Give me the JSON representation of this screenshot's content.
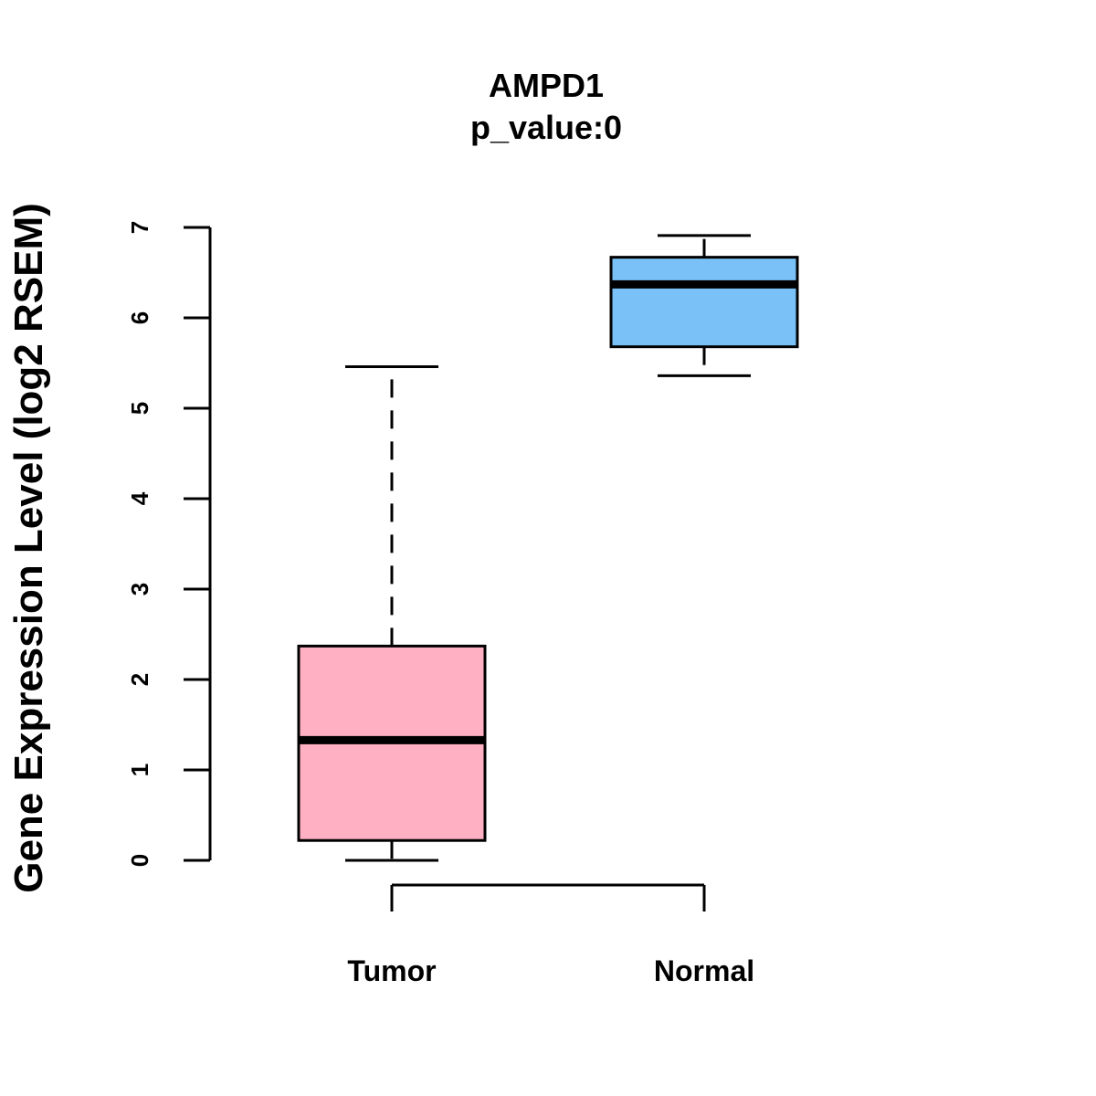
{
  "chart_data": {
    "type": "box",
    "title": "AMPD1",
    "subtitle": "p_value:0",
    "xlabel": "",
    "ylabel": "Gene Expression Level (log2 RSEM)",
    "ylim": [
      0,
      7
    ],
    "yticks": [
      "0",
      "1",
      "2",
      "3",
      "4",
      "5",
      "6",
      "7"
    ],
    "grid": false,
    "categories": [
      "Tumor",
      "Normal"
    ],
    "boxes": [
      {
        "category": "Tumor",
        "whisker_low": 0.0,
        "q1": 0.22,
        "median": 1.33,
        "q3": 2.37,
        "whisker_high": 5.46,
        "color": "#FFB0C2"
      },
      {
        "category": "Normal",
        "whisker_low": 5.36,
        "q1": 5.68,
        "median": 6.37,
        "q3": 6.67,
        "whisker_high": 6.91,
        "color": "#79C1F7"
      }
    ]
  }
}
